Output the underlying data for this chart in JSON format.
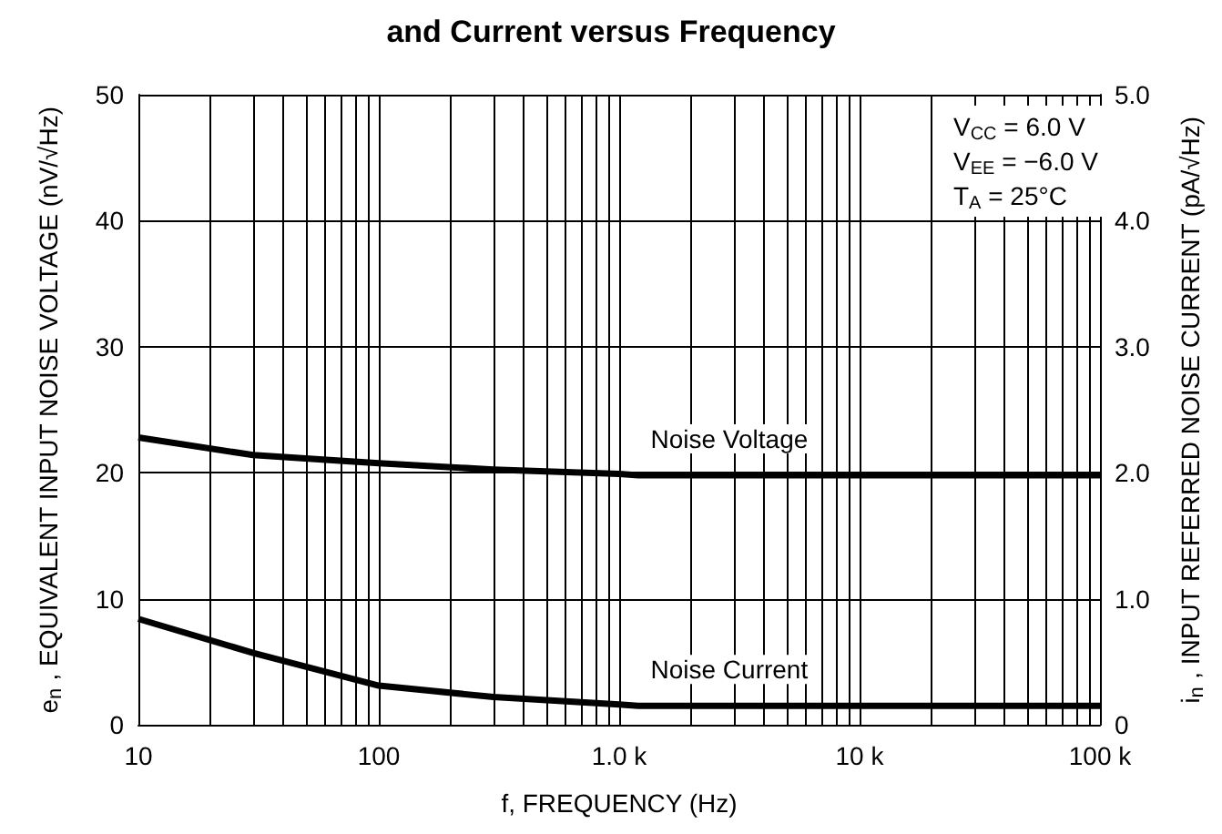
{
  "chart_data": {
    "type": "line",
    "title": "and Current versus Frequency",
    "xlabel": "f, FREQUENCY (Hz)",
    "ylabel": "e$_{n}$ , EQUIVALENT INPUT NOISE VOLTAGE (nV/√Hz)",
    "y2label": "i$_{n}$ , INPUT REFERRED NOISE CURRENT (pA/√Hz)",
    "log": "x",
    "xlim": [
      10,
      100000
    ],
    "xticks": [
      10,
      100,
      {
        "value": 1000,
        "label": "1.0 k"
      },
      {
        "value": 10000,
        "label": "10 k"
      },
      {
        "value": 100000,
        "label": "100 k"
      }
    ],
    "ylim": [
      0,
      50
    ],
    "yticks": [
      0,
      10,
      20,
      30,
      40,
      50
    ],
    "y2lim": [
      0,
      5
    ],
    "y2ticks": [
      0,
      {
        "value": 1,
        "label": "1.0"
      },
      {
        "value": 2,
        "label": "2.0"
      },
      {
        "value": 3,
        "label": "3.0"
      },
      {
        "value": 4,
        "label": "4.0"
      },
      {
        "value": 5,
        "label": "5.0"
      }
    ],
    "grid": true,
    "legend": false,
    "marker": "none",
    "line_style": "solid",
    "annotations": [
      "V$_{CC}$ = 6.0 V",
      "V$_{EE}$ = −6.0 V",
      "T$_{A}$ = 25°C"
    ],
    "series": [
      {
        "name": "Noise Voltage",
        "color": "#000000",
        "x": [
          10,
          30,
          100,
          300,
          1000,
          1200,
          100000
        ],
        "values": [
          22.8,
          21.4,
          20.75,
          20.25,
          19.9,
          19.8,
          19.8
        ]
      },
      {
        "name": "Noise Current",
        "color": "#000000",
        "axis": "y2",
        "x": [
          10,
          30,
          100,
          300,
          1000,
          1200,
          100000
        ],
        "values": [
          0.84,
          0.57,
          0.31,
          0.22,
          0.16,
          0.15,
          0.15
        ]
      }
    ]
  }
}
